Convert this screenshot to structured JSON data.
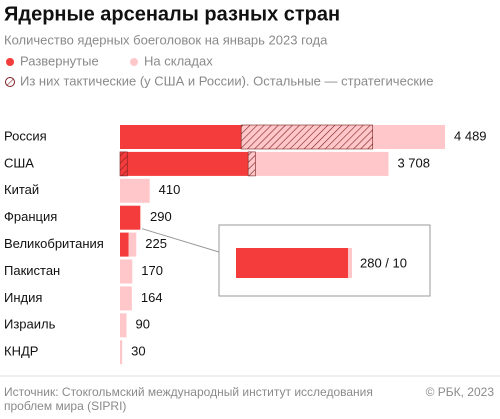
{
  "chart_data": {
    "type": "bar",
    "orientation": "horizontal",
    "title": "Ядерные арсеналы разных стран",
    "subtitle": "Количество ядерных боеголовок на январь 2023 года",
    "categories": [
      "Россия",
      "США",
      "Китай",
      "Франция",
      "Великобритания",
      "Пакистан",
      "Индия",
      "Израиль",
      "КНДР"
    ],
    "series": [
      {
        "name": "Развернутые",
        "color": "#f43c3c",
        "values": [
          1674,
          1770,
          null,
          280,
          120,
          null,
          null,
          null,
          null
        ]
      },
      {
        "name": "На складах",
        "color": "#ffc7c9",
        "values": [
          2815,
          1938,
          410,
          10,
          105,
          170,
          164,
          90,
          30
        ]
      }
    ],
    "tactical": {
      "name": "Из них тактические (у США и России). Остальные — стратегические",
      "deployed": [
        null,
        100,
        null,
        null,
        null,
        null,
        null,
        null,
        null
      ],
      "stored": [
        1816,
        100,
        null,
        null,
        null,
        null,
        null,
        null,
        null
      ]
    },
    "totals": [
      4489,
      3708,
      410,
      290,
      225,
      170,
      164,
      90,
      30
    ],
    "total_labels": [
      "4 489",
      "3 708",
      "410",
      "290",
      "225",
      "170",
      "164",
      "90",
      "30"
    ],
    "inset": {
      "category_index": 3,
      "label": "280 / 10"
    },
    "xlim": [
      0,
      4489
    ]
  },
  "footer": {
    "source": [
      "Источник: Стокгольмский международный институт исследования",
      "проблем мира (SIPRI)"
    ],
    "credit": "© РБК, 2023"
  }
}
